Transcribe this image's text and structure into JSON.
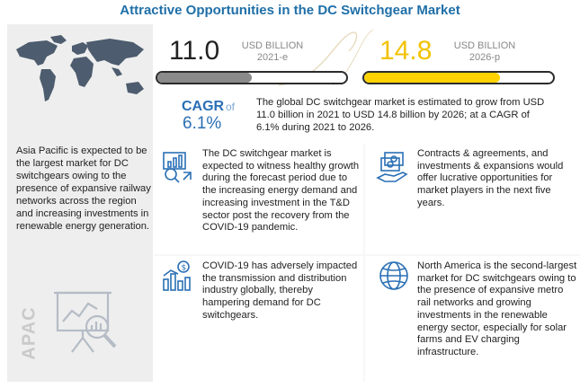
{
  "title": "Attractive Opportunities in the DC Switchgear Market",
  "stat_2021": {
    "value": "11.0",
    "unit": "USD BILLION",
    "year": "2021-e",
    "bar_fill_fraction": 0.5,
    "bar_color": "#8a8a8a"
  },
  "stat_2026": {
    "value": "14.8",
    "unit": "USD BILLION",
    "year": "2026-p",
    "bar_fill_fraction": 0.72,
    "bar_color": "#ffd200"
  },
  "cagr": {
    "label": "CAGR",
    "of": "of",
    "value": "6.1%"
  },
  "summary": "The global DC switchgear market is estimated to grow from USD 11.0 billion in 2021 to USD 14.8 billion by 2026; at a CAGR of 6.1% during 2021 to 2026.",
  "left_panel": {
    "text": "Asia Pacific is expected to be the largest market for DC switchgears owing to the presence of expansive railway networks across the region and increasing investments in renewable energy generation.",
    "region_label": "APAC",
    "icon": "data-analysis-icon",
    "map_icon": "world-map-icon"
  },
  "cards": [
    {
      "icon": "growth-chart-icon",
      "text": "The DC switchgear market is expected to witness healthy growth during the forecast period due to the increasing energy demand and increasing investment in the T&D sector post the recovery from the COVID-19 pandemic."
    },
    {
      "icon": "contracts-money-icon",
      "text": "Contracts & agreements, and investments & expansions would offer lucrative opportunities for market players in the next five years."
    },
    {
      "icon": "dollar-bars-icon",
      "text": "COVID-19 has adversely impacted the transmission and distribution industry globally, thereby hampering demand for DC switchgears."
    },
    {
      "icon": "globe-icon",
      "text": "North America is the second-largest market for DC switchgears owing to the presence of expansive metro rail networks and growing investments in the renewable energy sector, especially for solar farms and EV charging infrastructure."
    }
  ],
  "colors": {
    "title": "#1f6fa8",
    "cagr": "#2a6fb5",
    "icon": "#2a6fb5"
  }
}
